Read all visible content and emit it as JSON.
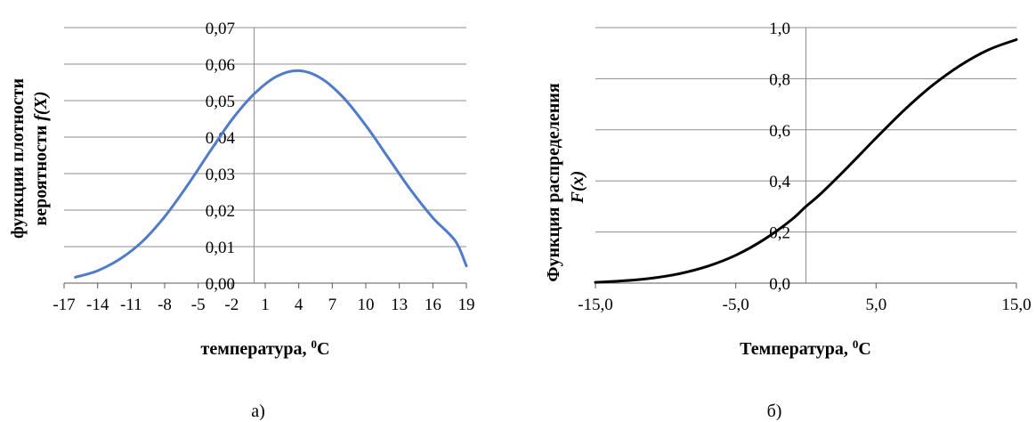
{
  "chart_data": [
    {
      "type": "line",
      "panel_label": "а)",
      "title": "",
      "xlabel": "температура, ",
      "xlabel_sup": "0",
      "xlabel_unit": "C",
      "ylabel_line1": "функции плотности",
      "ylabel_line2": "вероятности ",
      "ylabel_italic": "f(X)",
      "xlim": [
        -17,
        19
      ],
      "ylim": [
        0,
        0.07
      ],
      "x_ticks": [
        "-17",
        "-14",
        "-11",
        "-8",
        "-5",
        "-2",
        "1",
        "4",
        "7",
        "10",
        "13",
        "16",
        "19"
      ],
      "y_ticks": [
        "0,00",
        "0,01",
        "0,02",
        "0,03",
        "0,04",
        "0,05",
        "0,06",
        "0,07"
      ],
      "grid": "horizontal",
      "series": [
        {
          "color": "#4F7BC8",
          "x": [
            -16,
            -14,
            -12,
            -10,
            -8,
            -6,
            -4,
            -2,
            0,
            2,
            4,
            6,
            8,
            10,
            12,
            14,
            16,
            18,
            19
          ],
          "y": [
            0.0016,
            0.0034,
            0.0066,
            0.0114,
            0.0182,
            0.0266,
            0.0358,
            0.0447,
            0.0518,
            0.0566,
            0.0582,
            0.0561,
            0.0508,
            0.0432,
            0.0344,
            0.0256,
            0.0179,
            0.0116,
            0.0047
          ]
        }
      ]
    },
    {
      "type": "line",
      "panel_label": "б)",
      "title": "",
      "xlabel": "Температура, ",
      "xlabel_sup": "0",
      "xlabel_unit": "C",
      "ylabel_line1": "Функция  распределения",
      "ylabel_italic": "F(x)",
      "xlim": [
        -15,
        15
      ],
      "ylim": [
        0,
        1
      ],
      "x_ticks": [
        "-15,0",
        "-5,0",
        "5,0",
        "15,0"
      ],
      "y_ticks": [
        "0,0",
        "0,2",
        "0,4",
        "0,6",
        "0,8",
        "1,0"
      ],
      "grid": "horizontal",
      "series": [
        {
          "color": "#000000",
          "x": [
            -15,
            -13,
            -11,
            -9,
            -7,
            -5,
            -3,
            -1,
            0,
            1,
            3,
            5,
            7,
            9,
            11,
            13,
            15
          ],
          "y": [
            0.003,
            0.009,
            0.019,
            0.037,
            0.066,
            0.109,
            0.17,
            0.249,
            0.3,
            0.347,
            0.455,
            0.568,
            0.677,
            0.773,
            0.852,
            0.913,
            0.953
          ]
        }
      ]
    }
  ]
}
